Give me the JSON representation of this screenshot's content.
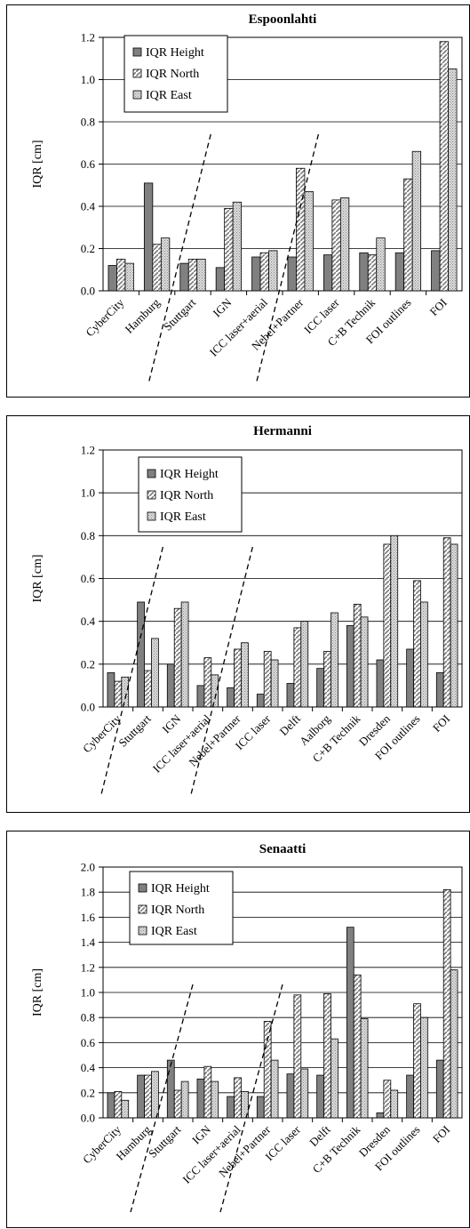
{
  "chart_data": [
    {
      "type": "bar",
      "title": "Espoonlahti",
      "ylabel": "IQR [cm]",
      "ylim": [
        0,
        1.2
      ],
      "yticks": [
        "0.0",
        "0.2",
        "0.4",
        "0.6",
        "0.8",
        "1.0",
        "1.2"
      ],
      "grid": true,
      "legend_position": "top-left",
      "categories": [
        "CyberCity",
        "Hamburg",
        "Stuttgart",
        "IGN",
        "ICC laser+aerial",
        "Nebel+Partner",
        "ICC laser",
        "C+B Technik",
        "FOI outlines",
        "FOI"
      ],
      "series": [
        {
          "name": "IQR Height",
          "values": [
            0.12,
            0.51,
            0.13,
            0.11,
            0.16,
            0.16,
            0.17,
            0.18,
            0.18,
            0.19
          ]
        },
        {
          "name": "IQR North",
          "values": [
            0.15,
            0.22,
            0.15,
            0.39,
            0.18,
            0.58,
            0.43,
            0.17,
            0.53,
            1.18
          ]
        },
        {
          "name": "IQR East",
          "values": [
            0.13,
            0.25,
            0.15,
            0.42,
            0.19,
            0.47,
            0.44,
            0.25,
            0.66,
            1.05
          ]
        }
      ]
    },
    {
      "type": "bar",
      "title": "Hermanni",
      "ylabel": "IQR [cm]",
      "ylim": [
        0,
        1.2
      ],
      "yticks": [
        "0.0",
        "0.2",
        "0.4",
        "0.6",
        "0.8",
        "1.0",
        "1.2"
      ],
      "grid": true,
      "legend_position": "top-left",
      "categories": [
        "CyberCity",
        "Stuttgart",
        "IGN",
        "ICC laser+aerial",
        "Nebel+Partner",
        "ICC laser",
        "Delft",
        "Aalborg",
        "C+B Technik",
        "Dresden",
        "FOI outlines",
        "FOI"
      ],
      "series": [
        {
          "name": "IQR Height",
          "values": [
            0.16,
            0.49,
            0.2,
            0.1,
            0.09,
            0.06,
            0.11,
            0.18,
            0.38,
            0.22,
            0.27,
            0.16
          ]
        },
        {
          "name": "IQR North",
          "values": [
            0.12,
            0.17,
            0.46,
            0.23,
            0.27,
            0.26,
            0.37,
            0.26,
            0.48,
            0.76,
            0.59,
            0.79
          ]
        },
        {
          "name": "IQR East",
          "values": [
            0.14,
            0.32,
            0.49,
            0.15,
            0.3,
            0.22,
            0.4,
            0.44,
            0.42,
            0.8,
            0.49,
            0.76
          ]
        }
      ]
    },
    {
      "type": "bar",
      "title": "Senaatti",
      "ylabel": "IQR [cm]",
      "ylim": [
        0,
        2.0
      ],
      "yticks": [
        "0.0",
        "0.2",
        "0.4",
        "0.6",
        "0.8",
        "1.0",
        "1.2",
        "1.4",
        "1.6",
        "1.8",
        "2.0"
      ],
      "grid": true,
      "legend_position": "top-left",
      "categories": [
        "CyberCity",
        "Hamburg",
        "Stuttgart",
        "IGN",
        "ICC laser+aerial",
        "Nebel+Partner",
        "ICC laser",
        "Delft",
        "C+B Technik",
        "Dresden",
        "FOI outlines",
        "FOI"
      ],
      "series": [
        {
          "name": "IQR Height",
          "values": [
            0.2,
            0.34,
            0.46,
            0.31,
            0.17,
            0.17,
            0.35,
            0.34,
            1.52,
            0.04,
            0.34,
            0.46
          ]
        },
        {
          "name": "IQR North",
          "values": [
            0.21,
            0.34,
            0.22,
            0.41,
            0.32,
            0.77,
            0.98,
            0.99,
            1.14,
            0.3,
            0.91,
            1.82
          ]
        },
        {
          "name": "IQR East",
          "values": [
            0.14,
            0.37,
            0.29,
            0.29,
            0.21,
            0.46,
            0.39,
            0.63,
            0.79,
            0.22,
            0.8,
            1.18
          ]
        }
      ]
    }
  ]
}
